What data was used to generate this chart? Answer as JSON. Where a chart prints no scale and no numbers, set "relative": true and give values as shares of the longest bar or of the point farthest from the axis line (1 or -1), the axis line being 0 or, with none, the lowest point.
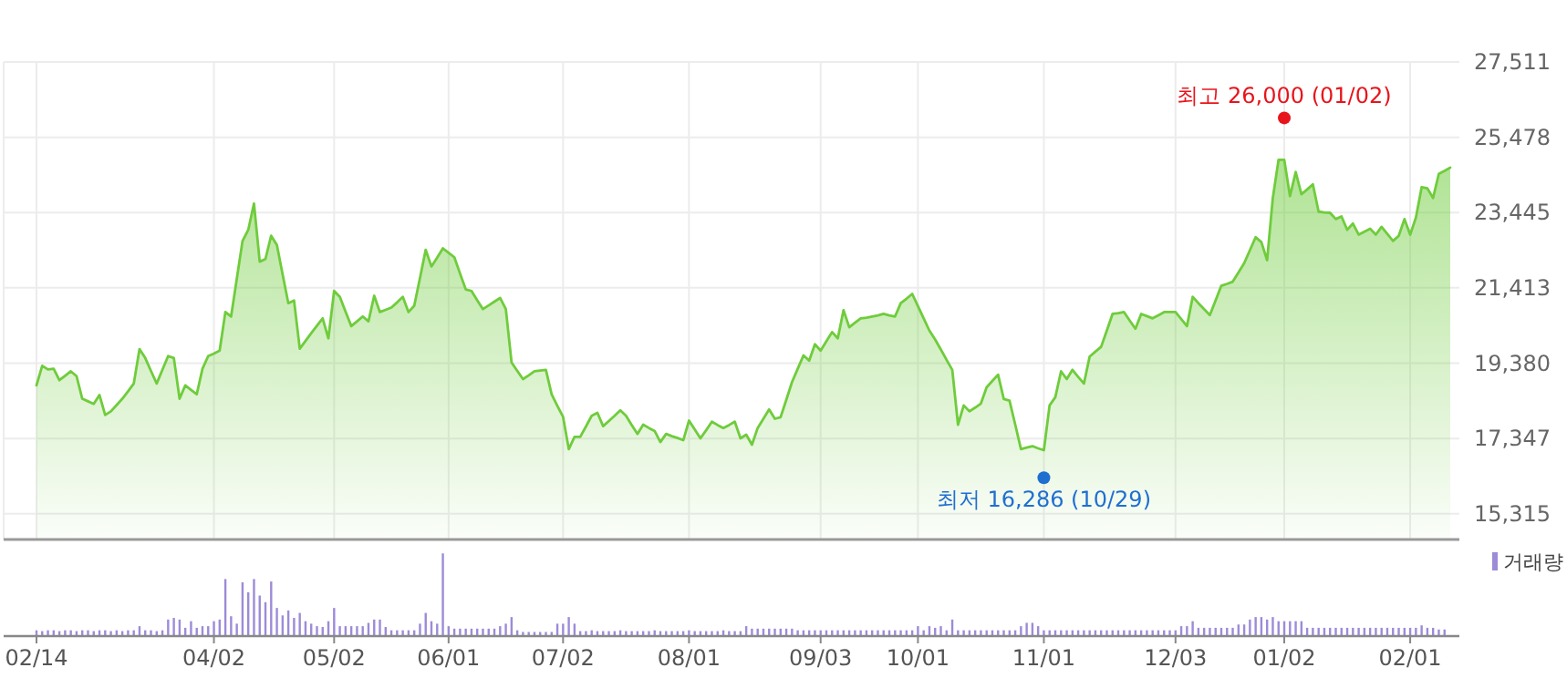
{
  "chart_data": [
    {
      "type": "area",
      "color": "#6fcc3c",
      "grid": true,
      "tick_labels": "y",
      "ylim": [
        14620,
        27511
      ],
      "yticks": [
        {
          "value": 15315,
          "label": "15,315"
        },
        {
          "value": 17347,
          "label": "17,347"
        },
        {
          "value": 19380,
          "label": "19,380"
        },
        {
          "value": 21413,
          "label": "21,413"
        },
        {
          "value": 23445,
          "label": "23,445"
        },
        {
          "value": 25478,
          "label": "25,478"
        },
        {
          "value": 27511,
          "label": "27,511"
        }
      ],
      "annotations": [
        {
          "text": "최고 26,000 (01/02)",
          "x": "01/02",
          "y": 26000
        },
        {
          "text": "최저 16,286 (10/29)",
          "y": 16286
        }
      ],
      "categories": [
        "02/14",
        null,
        null,
        null,
        null,
        null,
        null,
        null,
        null,
        null,
        null,
        null,
        null,
        null,
        null,
        null,
        null,
        null,
        null,
        null,
        null,
        null,
        null,
        null,
        null,
        null,
        null,
        null,
        null,
        null,
        null,
        "04/02",
        null,
        null,
        null,
        null,
        null,
        null,
        null,
        null,
        null,
        null,
        null,
        null,
        null,
        null,
        null,
        null,
        null,
        null,
        null,
        null,
        "05/02",
        null,
        null,
        null,
        null,
        null,
        null,
        null,
        null,
        null,
        null,
        null,
        null,
        null,
        null,
        null,
        null,
        null,
        null,
        null,
        "06/01",
        null,
        null,
        null,
        null,
        null,
        null,
        null,
        null,
        null,
        null,
        null,
        null,
        null,
        null,
        null,
        null,
        null,
        null,
        null,
        "07/02",
        null,
        null,
        null,
        null,
        null,
        null,
        null,
        null,
        null,
        null,
        null,
        null,
        null,
        null,
        null,
        null,
        null,
        null,
        null,
        null,
        null,
        "08/01",
        null,
        null,
        null,
        null,
        null,
        null,
        null,
        null,
        null,
        null,
        null,
        null,
        null,
        null,
        null,
        null,
        null,
        null,
        null,
        null,
        null,
        null,
        "09/03",
        null,
        null,
        null,
        null,
        null,
        null,
        null,
        null,
        null,
        null,
        null,
        null,
        null,
        null,
        null,
        null,
        "10/01",
        null,
        null,
        null,
        null,
        null,
        null,
        null,
        null,
        null,
        null,
        null,
        null,
        null,
        null,
        null,
        null,
        null,
        null,
        null,
        null,
        null,
        "11/01",
        null,
        null,
        null,
        null,
        null,
        null,
        null,
        null,
        null,
        null,
        null,
        null,
        null,
        null,
        null,
        null,
        null,
        null,
        null,
        null,
        null,
        null,
        "12/03",
        null,
        null,
        null,
        null,
        null,
        null,
        null,
        null,
        null,
        null,
        null,
        null,
        null,
        null,
        null,
        null,
        null,
        null,
        "01/02",
        null,
        null,
        null,
        null,
        null,
        null,
        null,
        null,
        null,
        null,
        null,
        null,
        null,
        null,
        null,
        null,
        null,
        null,
        null,
        null,
        null,
        "02/01",
        null,
        null,
        null,
        null,
        null,
        null,
        null
      ],
      "values": [
        18780,
        19310,
        19210,
        19230,
        18920,
        19040,
        19160,
        19030,
        18420,
        18350,
        18280,
        18520,
        17980,
        18080,
        18250,
        18420,
        18620,
        18830,
        19760,
        19520,
        19170,
        18830,
        19200,
        19570,
        19520,
        18420,
        18780,
        18660,
        18540,
        19230,
        19570,
        19640,
        19720,
        20760,
        20640,
        21660,
        22680,
        22980,
        23690,
        22120,
        22190,
        22820,
        22570,
        21780,
        21000,
        21070,
        19770,
        19980,
        20190,
        20390,
        20590,
        20050,
        21330,
        21170,
        20770,
        20380,
        20510,
        20640,
        20510,
        21200,
        20760,
        20820,
        20880,
        21020,
        21170,
        20760,
        20930,
        21680,
        22440,
        21990,
        22230,
        22480,
        22360,
        22240,
        21800,
        21370,
        21330,
        21080,
        20840,
        20940,
        21040,
        21140,
        20840,
        19400,
        19170,
        18950,
        19050,
        19160,
        19180,
        19200,
        18540,
        18230,
        17930,
        17060,
        17390,
        17390,
        17670,
        17960,
        18040,
        17680,
        17820,
        17960,
        18110,
        17960,
        17710,
        17470,
        17720,
        17630,
        17550,
        17250,
        17470,
        17410,
        17360,
        17300,
        17830,
        17590,
        17350,
        17570,
        17800,
        17710,
        17630,
        17710,
        17800,
        17350,
        17450,
        17180,
        17630,
        17880,
        18130,
        17880,
        17920,
        18390,
        18870,
        19230,
        19590,
        19450,
        19890,
        19720,
        19970,
        20220,
        20050,
        20810,
        20350,
        20470,
        20590,
        20610,
        20640,
        20670,
        20710,
        20670,
        20640,
        21000,
        21120,
        21250,
        20920,
        20590,
        20260,
        20020,
        19750,
        19470,
        19200,
        17720,
        18240,
        18080,
        18180,
        18290,
        18730,
        18900,
        19070,
        18410,
        18370,
        17720,
        17060,
        17100,
        17140,
        17080,
        17030,
        18240,
        18460,
        19160,
        18950,
        19200,
        19010,
        18830,
        19560,
        19690,
        19820,
        20260,
        20710,
        20730,
        20760,
        20530,
        20310,
        20710,
        20650,
        20590,
        20670,
        20760,
        20760,
        20760,
        20570,
        20380,
        21170,
        21000,
        20840,
        20680,
        21070,
        21470,
        21520,
        21580,
        21830,
        22080,
        22430,
        22780,
        22650,
        22160,
        23840,
        24870,
        24870,
        23890,
        24540,
        23940,
        24070,
        24210,
        23470,
        23450,
        23440,
        23270,
        23340,
        22980,
        23150,
        22850,
        22930,
        23010,
        22850,
        23060,
        22870,
        22680,
        22820,
        23270,
        22850,
        23310,
        24130,
        24100,
        23840,
        24490,
        24570,
        24660
      ]
    },
    {
      "type": "bar",
      "relative": true,
      "tick_labels": "x",
      "legend": "top right",
      "categories": [
        "02/14",
        null,
        null,
        null,
        null,
        null,
        null,
        null,
        null,
        null,
        null,
        null,
        null,
        null,
        null,
        null,
        null,
        null,
        null,
        null,
        null,
        null,
        null,
        null,
        null,
        null,
        null,
        null,
        null,
        null,
        null,
        "04/02",
        null,
        null,
        null,
        null,
        null,
        null,
        null,
        null,
        null,
        null,
        null,
        null,
        null,
        null,
        null,
        null,
        null,
        null,
        null,
        null,
        "05/02",
        null,
        null,
        null,
        null,
        null,
        null,
        null,
        null,
        null,
        null,
        null,
        null,
        null,
        null,
        null,
        null,
        null,
        null,
        null,
        "06/01",
        null,
        null,
        null,
        null,
        null,
        null,
        null,
        null,
        null,
        null,
        null,
        null,
        null,
        null,
        null,
        null,
        null,
        null,
        null,
        "07/02",
        null,
        null,
        null,
        null,
        null,
        null,
        null,
        null,
        null,
        null,
        null,
        null,
        null,
        null,
        null,
        null,
        null,
        null,
        null,
        null,
        null,
        "08/01",
        null,
        null,
        null,
        null,
        null,
        null,
        null,
        null,
        null,
        null,
        null,
        null,
        null,
        null,
        null,
        null,
        null,
        null,
        null,
        null,
        null,
        null,
        "09/03",
        null,
        null,
        null,
        null,
        null,
        null,
        null,
        null,
        null,
        null,
        null,
        null,
        null,
        null,
        null,
        null,
        "10/01",
        null,
        null,
        null,
        null,
        null,
        null,
        null,
        null,
        null,
        null,
        null,
        null,
        null,
        null,
        null,
        null,
        null,
        null,
        null,
        null,
        null,
        "11/01",
        null,
        null,
        null,
        null,
        null,
        null,
        null,
        null,
        null,
        null,
        null,
        null,
        null,
        null,
        null,
        null,
        null,
        null,
        null,
        null,
        null,
        null,
        "12/03",
        null,
        null,
        null,
        null,
        null,
        null,
        null,
        null,
        null,
        null,
        null,
        null,
        null,
        null,
        null,
        null,
        null,
        null,
        "01/02",
        null,
        null,
        null,
        null,
        null,
        null,
        null,
        null,
        null,
        null,
        null,
        null,
        null,
        null,
        null,
        null,
        null,
        null,
        null,
        null,
        null,
        "02/01",
        null,
        null,
        null,
        null,
        null,
        null,
        null
      ],
      "series": [
        {
          "name": "거래량",
          "color": "#9d8bd8",
          "values": [
            0.07,
            0.06,
            0.07,
            0.07,
            0.06,
            0.07,
            0.07,
            0.06,
            0.07,
            0.07,
            0.06,
            0.07,
            0.07,
            0.06,
            0.07,
            0.06,
            0.07,
            0.07,
            0.12,
            0.07,
            0.07,
            0.06,
            0.07,
            0.2,
            0.22,
            0.2,
            0.1,
            0.18,
            0.1,
            0.12,
            0.12,
            0.18,
            0.2,
            0.69,
            0.24,
            0.15,
            0.65,
            0.53,
            0.69,
            0.49,
            0.41,
            0.66,
            0.34,
            0.25,
            0.31,
            0.22,
            0.28,
            0.18,
            0.15,
            0.12,
            0.11,
            0.18,
            0.34,
            0.12,
            0.12,
            0.12,
            0.12,
            0.12,
            0.16,
            0.2,
            0.2,
            0.11,
            0.07,
            0.07,
            0.07,
            0.07,
            0.07,
            0.15,
            0.28,
            0.18,
            0.15,
            1,
            0.12,
            0.09,
            0.09,
            0.09,
            0.09,
            0.09,
            0.09,
            0.09,
            0.09,
            0.12,
            0.15,
            0.23,
            0.07,
            0.05,
            0.05,
            0.05,
            0.05,
            0.05,
            0.05,
            0.15,
            0.15,
            0.23,
            0.15,
            0.06,
            0.06,
            0.07,
            0.06,
            0.06,
            0.06,
            0.06,
            0.07,
            0.06,
            0.06,
            0.06,
            0.06,
            0.06,
            0.07,
            0.06,
            0.06,
            0.06,
            0.06,
            0.06,
            0.07,
            0.06,
            0.06,
            0.06,
            0.06,
            0.06,
            0.07,
            0.06,
            0.06,
            0.06,
            0.12,
            0.09,
            0.09,
            0.09,
            0.09,
            0.09,
            0.09,
            0.09,
            0.09,
            0.07,
            0.07,
            0.07,
            0.07,
            0.07,
            0.07,
            0.07,
            0.07,
            0.07,
            0.07,
            0.07,
            0.07,
            0.07,
            0.07,
            0.07,
            0.07,
            0.07,
            0.07,
            0.07,
            0.07,
            0.07,
            0.12,
            0.07,
            0.12,
            0.1,
            0.12,
            0.07,
            0.2,
            0.07,
            0.07,
            0.07,
            0.07,
            0.07,
            0.07,
            0.07,
            0.07,
            0.07,
            0.07,
            0.07,
            0.12,
            0.16,
            0.16,
            0.12,
            0.07,
            0.07,
            0.07,
            0.07,
            0.07,
            0.07,
            0.07,
            0.07,
            0.07,
            0.07,
            0.07,
            0.07,
            0.07,
            0.07,
            0.07,
            0.07,
            0.07,
            0.07,
            0.07,
            0.07,
            0.07,
            0.07,
            0.07,
            0.07,
            0.12,
            0.12,
            0.18,
            0.1,
            0.1,
            0.1,
            0.1,
            0.1,
            0.1,
            0.1,
            0.14,
            0.14,
            0.2,
            0.23,
            0.23,
            0.2,
            0.23,
            0.18,
            0.18,
            0.18,
            0.18,
            0.18,
            0.1,
            0.1,
            0.1,
            0.1,
            0.1,
            0.1,
            0.1,
            0.1,
            0.1,
            0.1,
            0.1,
            0.1,
            0.1,
            0.1,
            0.1,
            0.1,
            0.1,
            0.1,
            0.1,
            0.1,
            0.13,
            0.1,
            0.1,
            0.08,
            0.08,
            null
          ]
        }
      ]
    }
  ]
}
